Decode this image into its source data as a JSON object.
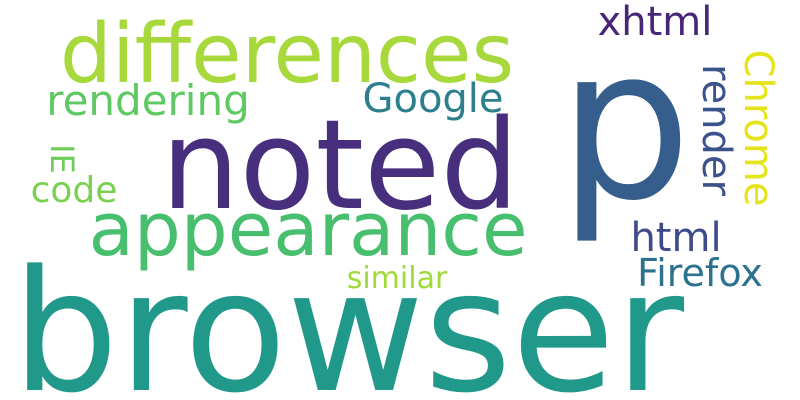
{
  "words": {
    "browser": {
      "text": "browser",
      "color": "#21998a"
    },
    "noted": {
      "text": "noted",
      "color": "#472f7d"
    },
    "p": {
      "text": "p",
      "color": "#365e8c"
    },
    "differences": {
      "text": "differences",
      "color": "#a8d93c"
    },
    "appearance": {
      "text": "appearance",
      "color": "#47bf6e"
    },
    "rendering": {
      "text": "rendering",
      "color": "#5ec962"
    },
    "google": {
      "text": "Google",
      "color": "#2d7f8e"
    },
    "xhtml": {
      "text": "xhtml",
      "color": "#482677"
    },
    "render": {
      "text": "render",
      "color": "#3b528b"
    },
    "chrome": {
      "text": "Chrome",
      "color": "#e5e419"
    },
    "ie": {
      "text": "IE",
      "color": "#6ccd5a"
    },
    "code": {
      "text": "code",
      "color": "#7ad151"
    },
    "html": {
      "text": "html",
      "color": "#3e4a89"
    },
    "firefox": {
      "text": "Firefox",
      "color": "#2c728e"
    },
    "similar": {
      "text": "similar",
      "color": "#9fda3a"
    }
  }
}
